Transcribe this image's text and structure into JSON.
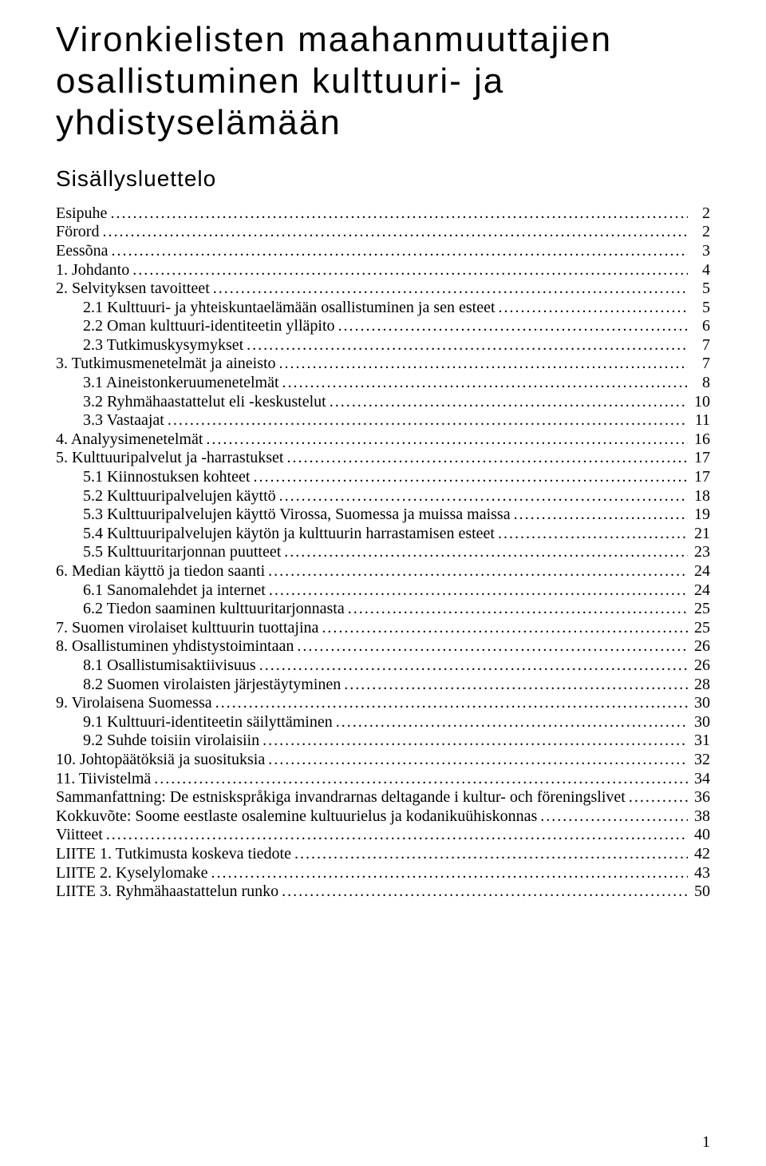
{
  "title_lines": [
    "Vironkielisten maahanmuuttajien",
    "osallistuminen kulttuuri- ja",
    "yhdistyselämään"
  ],
  "subtitle": "Sisällysluettelo",
  "page_number": "1",
  "toc": [
    {
      "label": "Esipuhe",
      "page": "2",
      "indent": false
    },
    {
      "label": "Förord",
      "page": "2",
      "indent": false
    },
    {
      "label": "Eessõna",
      "page": "3",
      "indent": false
    },
    {
      "label": "1. Johdanto",
      "page": "4",
      "indent": false
    },
    {
      "label": "2. Selvityksen tavoitteet",
      "page": "5",
      "indent": false
    },
    {
      "label": "2.1 Kulttuuri- ja yhteiskuntaelämään osallistuminen ja sen esteet",
      "page": "5",
      "indent": true
    },
    {
      "label": "2.2 Oman kulttuuri-identiteetin ylläpito",
      "page": "6",
      "indent": true
    },
    {
      "label": "2.3 Tutkimuskysymykset",
      "page": "7",
      "indent": true
    },
    {
      "label": "3. Tutkimusmenetelmät ja aineisto",
      "page": "7",
      "indent": false
    },
    {
      "label": "3.1 Aineistonkeruumenetelmät",
      "page": "8",
      "indent": true
    },
    {
      "label": "3.2 Ryhmähaastattelut eli -keskustelut",
      "page": "10",
      "indent": true
    },
    {
      "label": "3.3 Vastaajat",
      "page": "11",
      "indent": true
    },
    {
      "label": "4. Analyysimenetelmät",
      "page": "16",
      "indent": false
    },
    {
      "label": "5. Kulttuuripalvelut ja -harrastukset",
      "page": "17",
      "indent": false
    },
    {
      "label": "5.1 Kiinnostuksen kohteet",
      "page": "17",
      "indent": true
    },
    {
      "label": "5.2 Kulttuuripalvelujen käyttö",
      "page": "18",
      "indent": true
    },
    {
      "label": "5.3 Kulttuuripalvelujen käyttö Virossa, Suomessa ja muissa maissa",
      "page": "19",
      "indent": true
    },
    {
      "label": "5.4 Kulttuuripalvelujen käytön ja kulttuurin harrastamisen esteet",
      "page": "21",
      "indent": true
    },
    {
      "label": "5.5 Kulttuuritarjonnan puutteet",
      "page": "23",
      "indent": true
    },
    {
      "label": "6. Median käyttö ja tiedon saanti",
      "page": "24",
      "indent": false
    },
    {
      "label": "6.1 Sanomalehdet ja internet",
      "page": "24",
      "indent": true
    },
    {
      "label": "6.2 Tiedon saaminen kulttuuritarjonnasta",
      "page": "25",
      "indent": true
    },
    {
      "label": "7. Suomen virolaiset kulttuurin tuottajina",
      "page": "25",
      "indent": false
    },
    {
      "label": "8. Osallistuminen yhdistystoimintaan",
      "page": "26",
      "indent": false
    },
    {
      "label": "8.1 Osallistumisaktiivisuus",
      "page": "26",
      "indent": true
    },
    {
      "label": "8.2 Suomen virolaisten järjestäytyminen",
      "page": "28",
      "indent": true
    },
    {
      "label": "9. Virolaisena Suomessa",
      "page": "30",
      "indent": false
    },
    {
      "label": "9.1 Kulttuuri-identiteetin säilyttäminen",
      "page": "30",
      "indent": true
    },
    {
      "label": "9.2 Suhde toisiin virolaisiin",
      "page": "31",
      "indent": true
    },
    {
      "label": "10. Johtopäätöksiä ja suosituksia",
      "page": "32",
      "indent": false
    },
    {
      "label": "11. Tiivistelmä",
      "page": "34",
      "indent": false
    },
    {
      "label": "Sammanfattning: De estniskspråkiga invandrarnas deltagande i kultur- och föreningslivet",
      "page": "36",
      "indent": false
    },
    {
      "label": "Kokkuvõte: Soome eestlaste osalemine kultuurielus ja kodanikuühiskonnas",
      "page": "38",
      "indent": false
    },
    {
      "label": "Viitteet",
      "page": "40",
      "indent": false
    },
    {
      "label": "LIITE 1. Tutkimusta koskeva tiedote",
      "page": "42",
      "indent": false
    },
    {
      "label": "LIITE 2. Kyselylomake",
      "page": "43",
      "indent": false
    },
    {
      "label": "LIITE 3. Ryhmähaastattelun runko",
      "page": "50",
      "indent": false
    }
  ]
}
